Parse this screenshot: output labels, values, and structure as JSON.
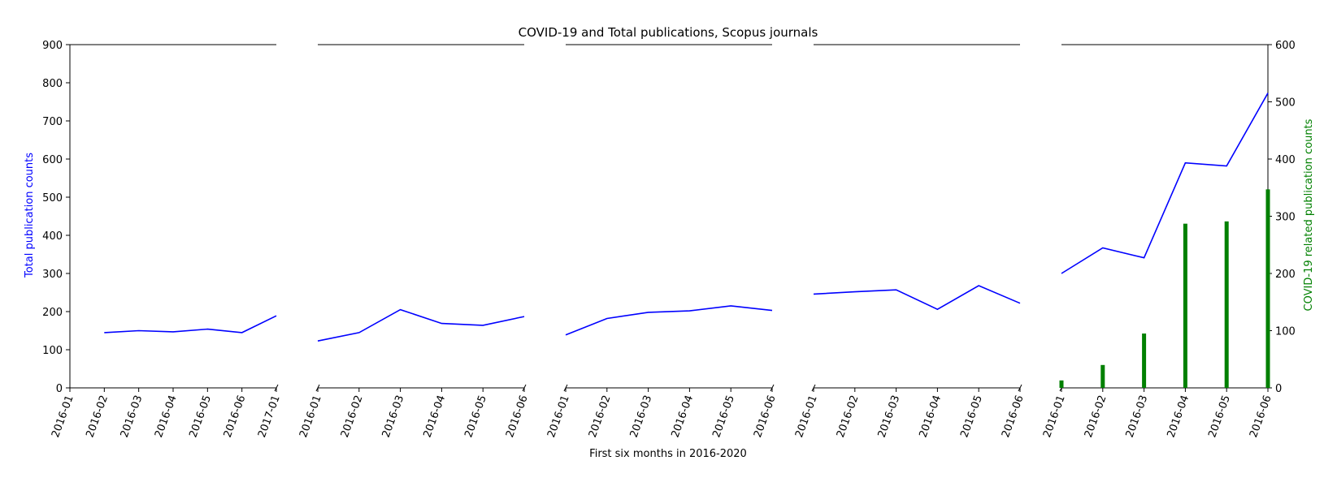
{
  "chart_data": {
    "type": "line",
    "title": "COVID-19 and Total publications, Scopus journals",
    "xlabel": "First six months in 2016-2020",
    "ylabel_left": "Total publication counts",
    "ylabel_right": "COVID-19 related publication counts",
    "ylim_left": [
      0,
      900
    ],
    "ylim_right": [
      0,
      600
    ],
    "yticks_left": [
      "0",
      "100",
      "200",
      "300",
      "400",
      "500",
      "600",
      "700",
      "800",
      "900"
    ],
    "yticks_right": [
      "0",
      "100",
      "200",
      "300",
      "400",
      "500",
      "600"
    ],
    "colors": {
      "total": "#0000ff",
      "covid": "#008000",
      "axis": "#000000"
    },
    "panels": [
      {
        "xticks": [
          "2016-01",
          "2016-02",
          "2016-03",
          "2016-04",
          "2016-05",
          "2016-06",
          "2017-01"
        ],
        "x": [
          "2016-02",
          "2016-03",
          "2016-04",
          "2016-05",
          "2016-06",
          "2017-01"
        ],
        "total": [
          145,
          150,
          147,
          154,
          145,
          189
        ]
      },
      {
        "xticks": [
          "2016-01",
          "2016-02",
          "2016-03",
          "2016-04",
          "2016-05",
          "2016-06"
        ],
        "x": [
          "2016-01",
          "2016-02",
          "2016-03",
          "2016-04",
          "2016-05",
          "2016-06"
        ],
        "total": [
          123,
          145,
          205,
          169,
          164,
          187
        ]
      },
      {
        "xticks": [
          "2016-01",
          "2016-02",
          "2016-03",
          "2016-04",
          "2016-05",
          "2016-06"
        ],
        "x": [
          "2016-01",
          "2016-02",
          "2016-03",
          "2016-04",
          "2016-05",
          "2016-06"
        ],
        "total": [
          139,
          182,
          198,
          202,
          215,
          203
        ]
      },
      {
        "xticks": [
          "2016-01",
          "2016-02",
          "2016-03",
          "2016-04",
          "2016-05",
          "2016-06"
        ],
        "x": [
          "2016-01",
          "2016-02",
          "2016-03",
          "2016-04",
          "2016-05",
          "2016-06"
        ],
        "total": [
          246,
          252,
          257,
          206,
          268,
          222
        ]
      },
      {
        "xticks": [
          "2016-01",
          "2016-02",
          "2016-03",
          "2016-04",
          "2016-05",
          "2016-06"
        ],
        "x": [
          "2016-01",
          "2016-02",
          "2016-03",
          "2016-04",
          "2016-05",
          "2016-06"
        ],
        "total": [
          300,
          367,
          341,
          590,
          582,
          773
        ],
        "covid": [
          13,
          40,
          95,
          287,
          291,
          347
        ]
      }
    ]
  }
}
